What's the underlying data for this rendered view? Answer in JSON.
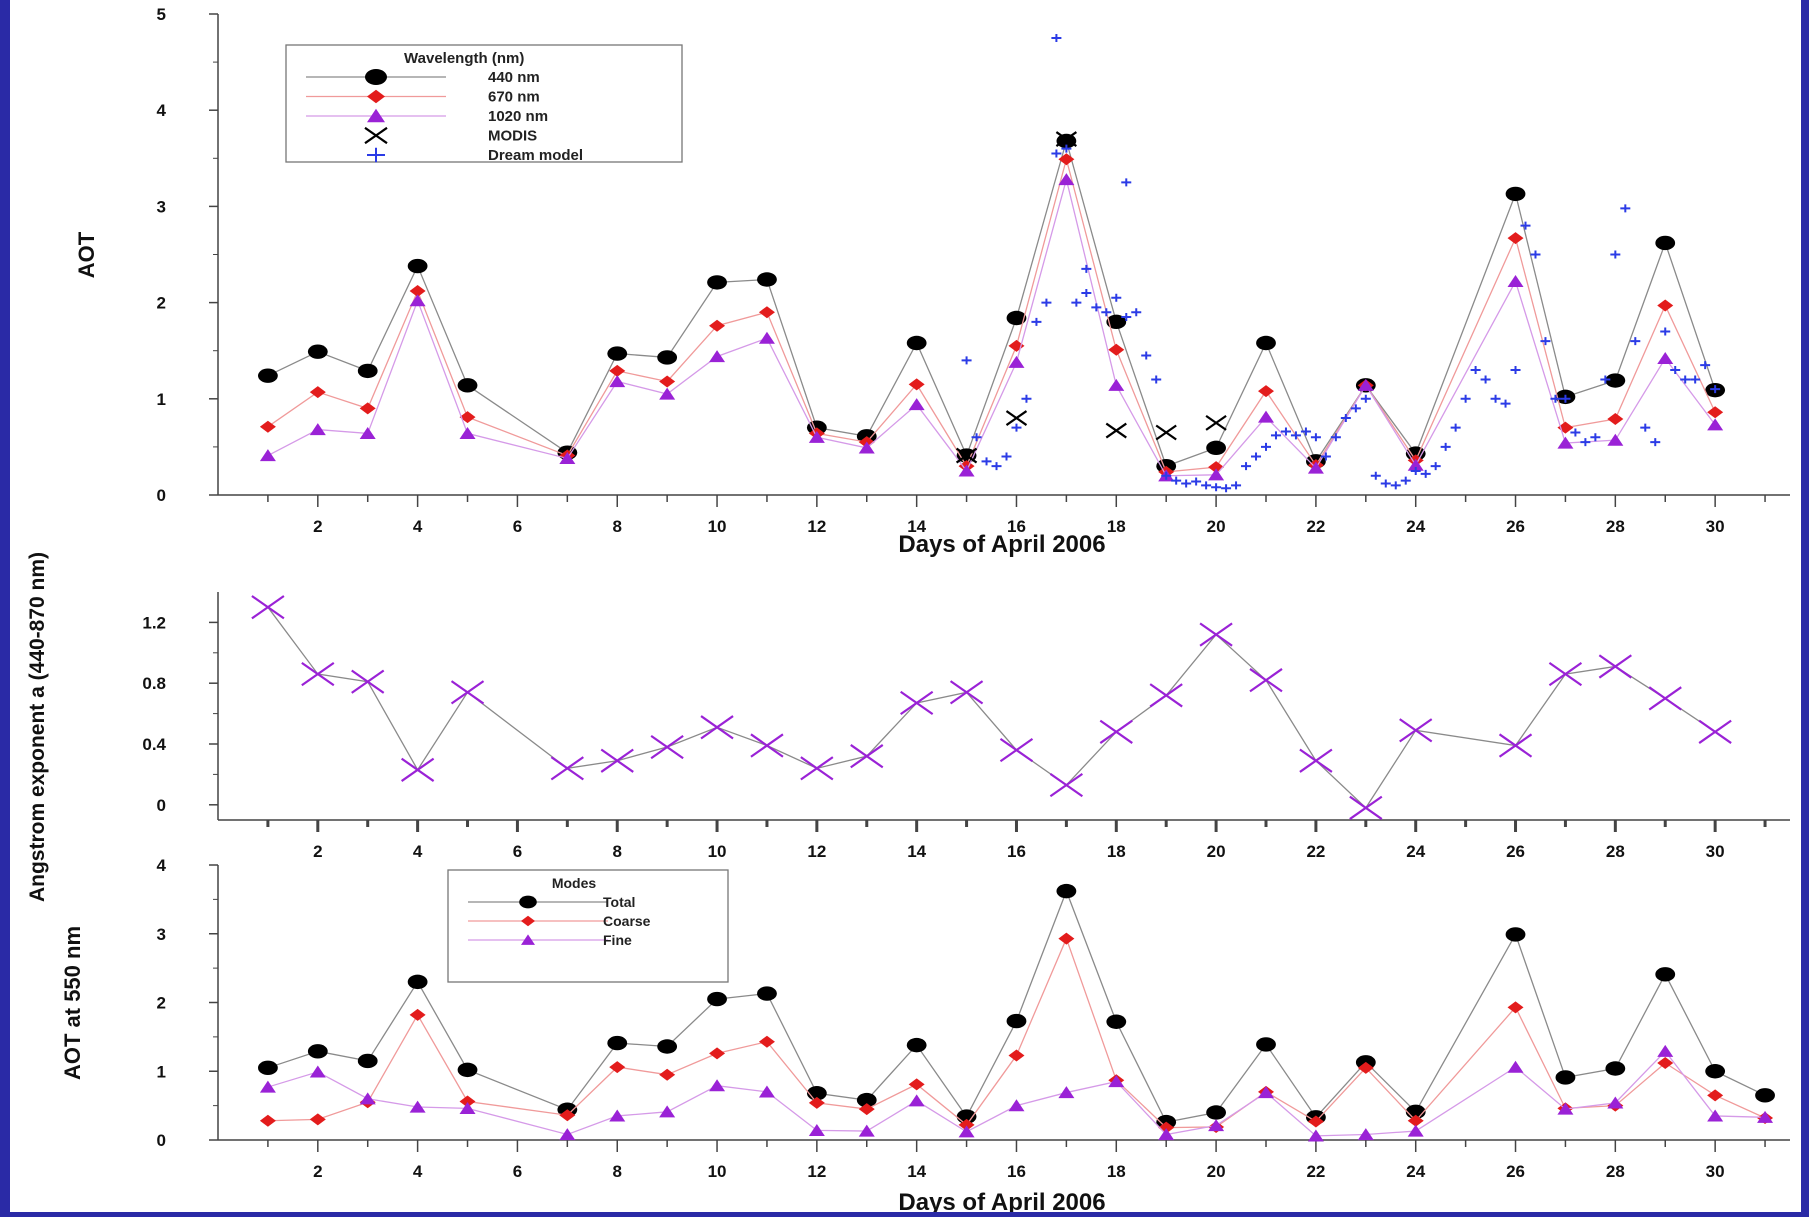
{
  "chart_data": [
    {
      "type": "line",
      "ylabel": "AOT",
      "xlabel": "Days of April 2006",
      "xlim": [
        0,
        31.5
      ],
      "ylim": [
        0,
        5
      ],
      "x_ticks": [
        2,
        4,
        6,
        8,
        10,
        12,
        14,
        16,
        18,
        20,
        22,
        24,
        26,
        28,
        30
      ],
      "y_ticks": [
        0,
        1,
        2,
        3,
        4,
        5
      ],
      "legend_title": "Wavelength (nm)",
      "legend_position": "top-left",
      "grid": false,
      "series": [
        {
          "name": "440 nm",
          "color": "#000000",
          "marker": "circle",
          "x": [
            1,
            2,
            3,
            4,
            5,
            7,
            8,
            9,
            10,
            11,
            12,
            13,
            14,
            15,
            16,
            17,
            18,
            19,
            20,
            21,
            22,
            23,
            24,
            26,
            27,
            28,
            29,
            30
          ],
          "y": [
            1.24,
            1.49,
            1.29,
            2.38,
            1.14,
            0.44,
            1.47,
            1.43,
            2.21,
            2.24,
            0.7,
            0.61,
            1.58,
            0.41,
            1.84,
            3.68,
            1.8,
            0.3,
            0.49,
            1.58,
            0.35,
            1.14,
            0.43,
            3.13,
            1.02,
            1.19,
            2.62,
            1.09
          ]
        },
        {
          "name": "670 nm",
          "color": "#e31c1c",
          "marker": "diamond",
          "x": [
            1,
            2,
            3,
            4,
            5,
            7,
            8,
            9,
            10,
            11,
            12,
            13,
            14,
            15,
            16,
            17,
            18,
            19,
            20,
            21,
            22,
            23,
            24,
            26,
            27,
            28,
            29,
            30
          ],
          "y": [
            0.71,
            1.07,
            0.9,
            2.12,
            0.81,
            0.41,
            1.29,
            1.18,
            1.76,
            1.9,
            0.64,
            0.55,
            1.15,
            0.3,
            1.55,
            3.49,
            1.51,
            0.24,
            0.29,
            1.08,
            0.31,
            1.14,
            0.36,
            2.67,
            0.7,
            0.79,
            1.97,
            0.86
          ]
        },
        {
          "name": "1020 nm",
          "color": "#9a22d6",
          "marker": "triangle",
          "x": [
            1,
            2,
            3,
            4,
            5,
            7,
            8,
            9,
            10,
            11,
            12,
            13,
            14,
            15,
            16,
            17,
            18,
            19,
            20,
            21,
            22,
            23,
            24,
            26,
            27,
            28,
            29,
            30
          ],
          "y": [
            0.41,
            0.68,
            0.64,
            2.02,
            0.64,
            0.38,
            1.18,
            1.05,
            1.44,
            1.63,
            0.6,
            0.49,
            0.94,
            0.25,
            1.38,
            3.28,
            1.14,
            0.2,
            0.21,
            0.81,
            0.28,
            1.14,
            0.31,
            2.22,
            0.54,
            0.57,
            1.42,
            0.73
          ]
        },
        {
          "name": "MODIS",
          "color": "#000000",
          "marker": "x",
          "x": [
            15,
            16,
            17,
            18,
            19,
            20
          ],
          "y": [
            0.41,
            0.8,
            3.7,
            0.67,
            0.65,
            0.75
          ]
        },
        {
          "name": "Dream model",
          "color": "#2b3be6",
          "marker": "plus",
          "x": [
            15.0,
            15.2,
            15.4,
            15.6,
            15.8,
            16.0,
            16.2,
            16.4,
            16.6,
            16.8,
            17.0,
            17.2,
            17.4,
            17.6,
            17.8,
            18.0,
            18.2,
            18.4,
            18.6,
            18.8,
            19.0,
            19.2,
            19.4,
            19.6,
            19.8,
            20.0,
            20.2,
            20.4,
            20.6,
            20.8,
            21.0,
            21.2,
            21.4,
            21.6,
            21.8,
            22.0,
            22.2,
            22.4,
            22.6,
            22.8,
            23.0,
            23.2,
            23.4,
            23.6,
            23.8,
            24.0,
            24.2,
            24.4,
            24.6,
            24.8,
            25.0,
            25.2,
            25.4,
            25.6,
            25.8,
            26.0,
            26.2,
            26.4,
            26.6,
            26.8,
            27.0,
            27.2,
            27.4,
            27.6,
            27.8,
            28.0,
            28.2,
            28.4,
            28.6,
            28.8,
            29.0,
            29.2,
            29.4,
            29.6,
            29.8,
            30.0,
            16.8,
            17.4,
            18.2
          ],
          "y": [
            1.4,
            0.6,
            0.35,
            0.3,
            0.4,
            0.7,
            1.0,
            1.8,
            2.0,
            3.55,
            3.6,
            2.0,
            2.1,
            1.95,
            1.9,
            2.05,
            1.85,
            1.9,
            1.45,
            1.2,
            0.2,
            0.15,
            0.12,
            0.14,
            0.1,
            0.08,
            0.07,
            0.1,
            0.3,
            0.4,
            0.5,
            0.62,
            0.66,
            0.62,
            0.66,
            0.6,
            0.4,
            0.6,
            0.8,
            0.9,
            1.0,
            0.2,
            0.12,
            0.1,
            0.15,
            0.25,
            0.22,
            0.3,
            0.5,
            0.7,
            1.0,
            1.3,
            1.2,
            1.0,
            0.95,
            1.3,
            2.8,
            2.5,
            1.6,
            1.0,
            1.0,
            0.65,
            0.55,
            0.6,
            1.2,
            2.5,
            2.98,
            1.6,
            0.7,
            0.55,
            1.7,
            1.3,
            1.2,
            1.2,
            1.35,
            1.1,
            4.75,
            2.35,
            3.25
          ]
        }
      ]
    },
    {
      "type": "line",
      "ylabel": "Angstrom exponent a (440-870 nm)",
      "xlim": [
        0,
        31.5
      ],
      "ylim": [
        -0.1,
        1.4
      ],
      "x_ticks": [
        2,
        4,
        6,
        8,
        10,
        12,
        14,
        16,
        18,
        20,
        22,
        24,
        26,
        28,
        30
      ],
      "y_ticks": [
        0,
        0.4,
        0.8,
        1.2
      ],
      "y_tick_labels": [
        "0",
        "0.4",
        "0.8",
        "1.2"
      ],
      "grid": false,
      "series": [
        {
          "name": "",
          "color": "#9a22d6",
          "marker": "x",
          "x": [
            1,
            2,
            3,
            4,
            5,
            7,
            8,
            9,
            10,
            11,
            12,
            13,
            14,
            15,
            16,
            17,
            18,
            19,
            20,
            21,
            22,
            23,
            24,
            26,
            27,
            28,
            29,
            30
          ],
          "y": [
            1.3,
            0.86,
            0.81,
            0.23,
            0.74,
            0.24,
            0.29,
            0.38,
            0.51,
            0.39,
            0.24,
            0.32,
            0.67,
            0.74,
            0.36,
            0.13,
            0.48,
            0.72,
            1.12,
            0.82,
            0.29,
            -0.02,
            0.49,
            0.39,
            0.86,
            0.91,
            0.7,
            0.48
          ]
        }
      ]
    },
    {
      "type": "line",
      "ylabel": "AOT at 550 nm",
      "xlabel": "Days of April 2006",
      "xlim": [
        0,
        31.5
      ],
      "ylim": [
        0,
        4
      ],
      "x_ticks": [
        2,
        4,
        6,
        8,
        10,
        12,
        14,
        16,
        18,
        20,
        22,
        24,
        26,
        28,
        30
      ],
      "y_ticks": [
        0,
        1,
        2,
        3,
        4
      ],
      "legend_title": "Modes",
      "legend_position": "top-left",
      "grid": false,
      "series": [
        {
          "name": "Total",
          "color": "#000000",
          "marker": "circle",
          "x": [
            1,
            2,
            3,
            4,
            5,
            7,
            8,
            9,
            10,
            11,
            12,
            13,
            14,
            15,
            16,
            17,
            18,
            19,
            20,
            21,
            22,
            23,
            24,
            26,
            27,
            28,
            29,
            30,
            31
          ],
          "y": [
            1.05,
            1.29,
            1.15,
            2.3,
            1.02,
            0.44,
            1.41,
            1.36,
            2.05,
            2.13,
            0.68,
            0.58,
            1.38,
            0.34,
            1.73,
            3.62,
            1.72,
            0.26,
            0.4,
            1.39,
            0.33,
            1.13,
            0.41,
            2.99,
            0.91,
            1.04,
            2.41,
            1.0,
            0.65
          ]
        },
        {
          "name": "Coarse",
          "color": "#e31c1c",
          "marker": "diamond",
          "x": [
            1,
            2,
            3,
            4,
            5,
            7,
            8,
            9,
            10,
            11,
            12,
            13,
            14,
            15,
            16,
            17,
            18,
            19,
            20,
            21,
            22,
            23,
            24,
            26,
            27,
            28,
            29,
            30,
            31
          ],
          "y": [
            0.28,
            0.3,
            0.55,
            1.82,
            0.56,
            0.36,
            1.06,
            0.95,
            1.26,
            1.43,
            0.54,
            0.45,
            0.81,
            0.22,
            1.23,
            2.93,
            0.87,
            0.18,
            0.19,
            0.7,
            0.27,
            1.05,
            0.28,
            1.93,
            0.46,
            0.5,
            1.12,
            0.65,
            0.32
          ]
        },
        {
          "name": "Fine",
          "color": "#9a22d6",
          "marker": "triangle",
          "x": [
            1,
            2,
            3,
            4,
            5,
            7,
            8,
            9,
            10,
            11,
            12,
            13,
            14,
            15,
            16,
            17,
            18,
            19,
            20,
            21,
            22,
            23,
            24,
            26,
            27,
            28,
            29,
            30,
            31
          ],
          "y": [
            0.77,
            0.99,
            0.6,
            0.48,
            0.46,
            0.08,
            0.35,
            0.41,
            0.79,
            0.7,
            0.14,
            0.13,
            0.57,
            0.12,
            0.5,
            0.69,
            0.85,
            0.08,
            0.21,
            0.69,
            0.06,
            0.08,
            0.13,
            1.06,
            0.45,
            0.54,
            1.29,
            0.35,
            0.33
          ]
        }
      ]
    }
  ]
}
